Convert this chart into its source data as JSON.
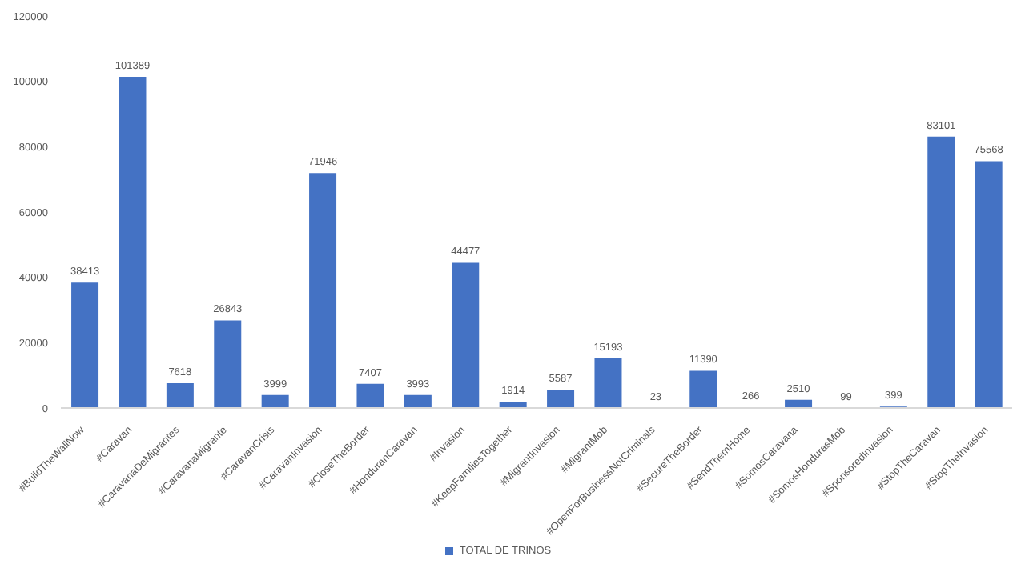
{
  "chart_data": {
    "type": "bar",
    "categories": [
      "#BuildTheWallNow",
      "#Caravan",
      "#CaravanaDeMigrantes",
      "#CaravanaMigrante",
      "#CaravanCrisis",
      "#CaravanInvasion",
      "#CloseTheBorder",
      "#HonduranCaravan",
      "#Invasion",
      "#KeepFamiliesTogether",
      "#MigrantInvasion",
      "#MigrantMob",
      "#OpenForBusinessNotCriminals",
      "#SecureTheBorder",
      "#SendThemHome",
      "#SomosCaravana",
      "#SomosHondurasMob",
      "#SponsoredInvasion",
      "#StopTheCaravan",
      "#StopTheInvasion"
    ],
    "series": [
      {
        "name": "TOTAL DE TRINOS",
        "color": "#4472c4",
        "values": [
          38413,
          101389,
          7618,
          26843,
          3999,
          71946,
          7407,
          3993,
          44477,
          1914,
          5587,
          15193,
          23,
          11390,
          266,
          2510,
          99,
          399,
          83101,
          75568
        ]
      }
    ],
    "ylim": [
      0,
      120000
    ],
    "yticks": [
      0,
      20000,
      40000,
      60000,
      80000,
      100000,
      120000
    ],
    "data_labels": true,
    "legend": "bottom",
    "grid": false
  }
}
